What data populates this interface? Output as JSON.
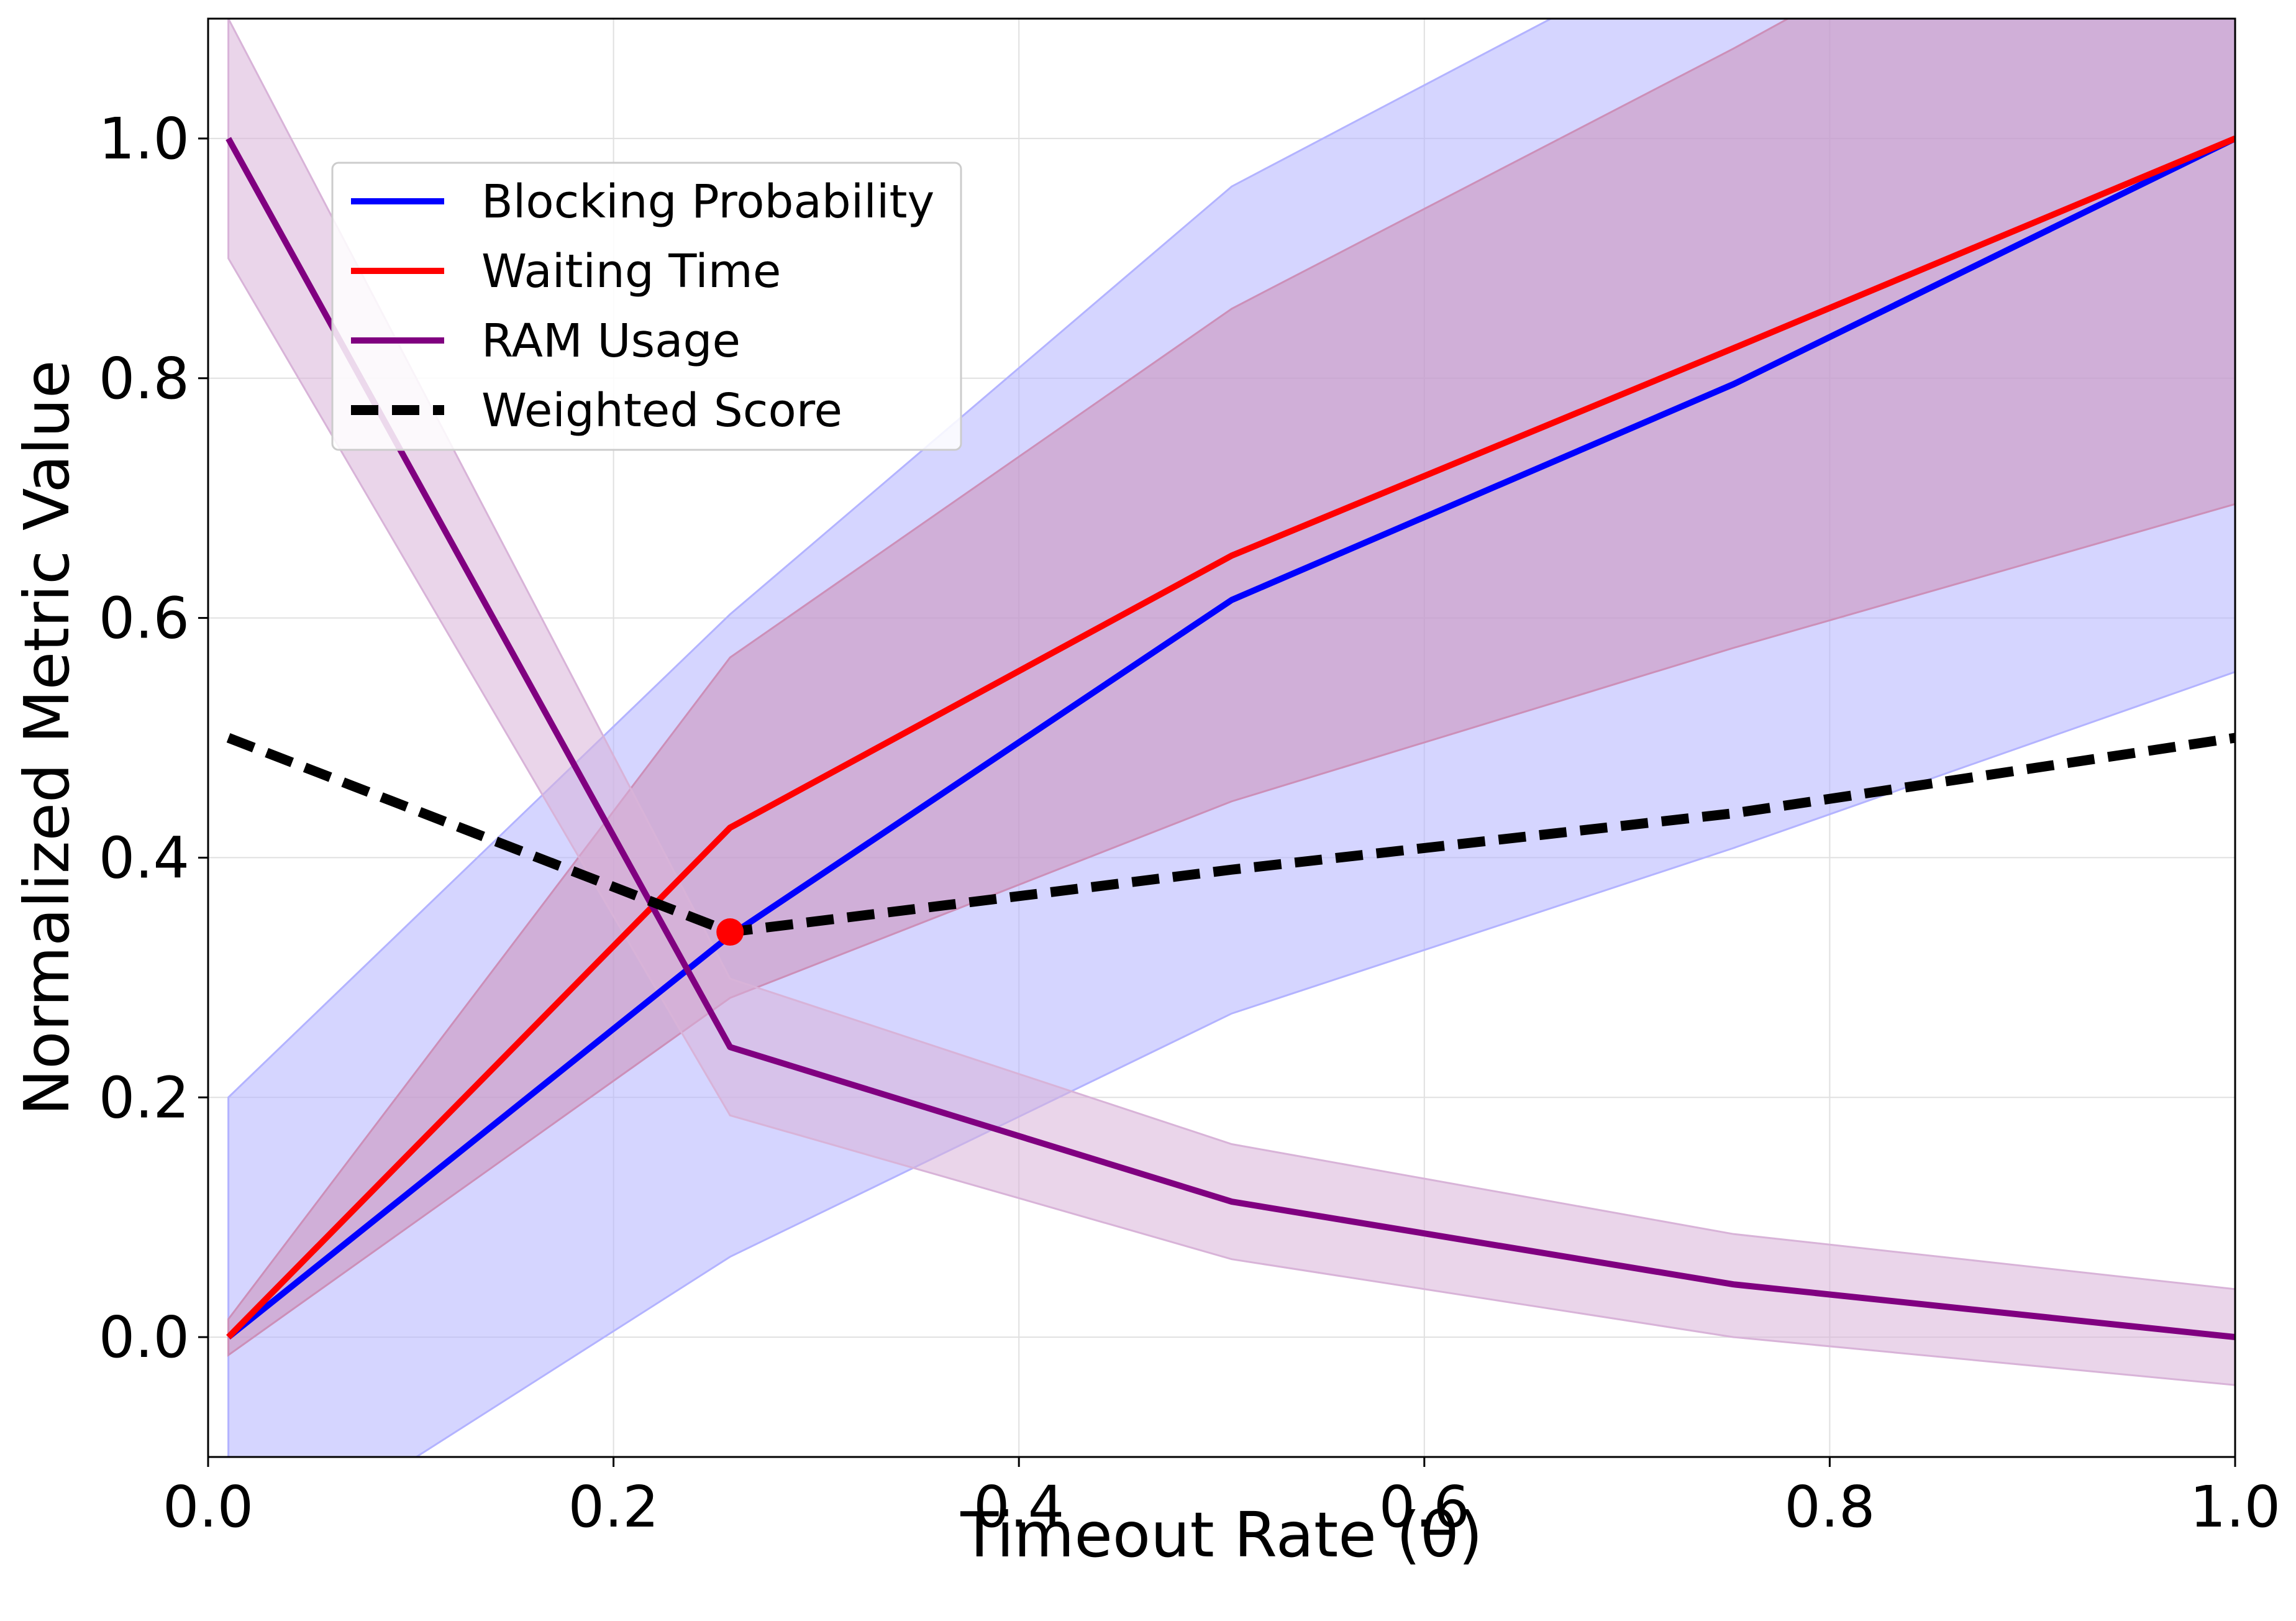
{
  "chart_data": {
    "type": "line",
    "xlabel": "Timeout Rate (θ)",
    "ylabel": "Normalized Metric Value",
    "xlim": [
      0.0,
      1.0
    ],
    "ylim": [
      -0.1,
      1.1
    ],
    "xticks": [
      "0.0",
      "0.2",
      "0.4",
      "0.6",
      "0.8",
      "1.0"
    ],
    "yticks": [
      "0.0",
      "0.2",
      "0.4",
      "0.6",
      "0.8",
      "1.0"
    ],
    "grid": true,
    "legend_position": "upper-left",
    "x": [
      0.01,
      0.2575,
      0.505,
      0.7525,
      1.0
    ],
    "series": [
      {
        "name": "Blocking Probability",
        "color": "#0000ff",
        "style": "solid",
        "values": [
          0.0,
          0.335,
          0.615,
          0.795,
          1.0
        ],
        "band_lower": [
          -0.2,
          0.067,
          0.27,
          0.408,
          0.555
        ],
        "band_upper": [
          0.2,
          0.603,
          0.96,
          1.18,
          1.445
        ],
        "band_color": "#b3b3ff"
      },
      {
        "name": "Waiting Time",
        "color": "#ff0000",
        "style": "solid",
        "values": [
          0.0,
          0.425,
          0.652,
          0.825,
          1.0
        ],
        "band_lower": [
          -0.015,
          0.283,
          0.447,
          0.575,
          0.695
        ],
        "band_upper": [
          0.015,
          0.567,
          0.858,
          1.075,
          1.305
        ],
        "band_color": "#cc8fb8"
      },
      {
        "name": "RAM Usage",
        "color": "#800080",
        "style": "solid",
        "values": [
          1.0,
          0.242,
          0.113,
          0.044,
          0.0
        ],
        "band_lower": [
          0.9,
          0.185,
          0.065,
          0.0,
          -0.04
        ],
        "band_upper": [
          1.1,
          0.299,
          0.161,
          0.086,
          0.04
        ],
        "band_color": "#d8b3d8"
      },
      {
        "name": "Weighted Score",
        "color": "#000000",
        "style": "dashed",
        "values": [
          0.5,
          0.338,
          0.39,
          0.437,
          0.5
        ]
      }
    ],
    "highlight_point": {
      "x": 0.2575,
      "y": 0.338,
      "color": "#ff0000"
    }
  }
}
